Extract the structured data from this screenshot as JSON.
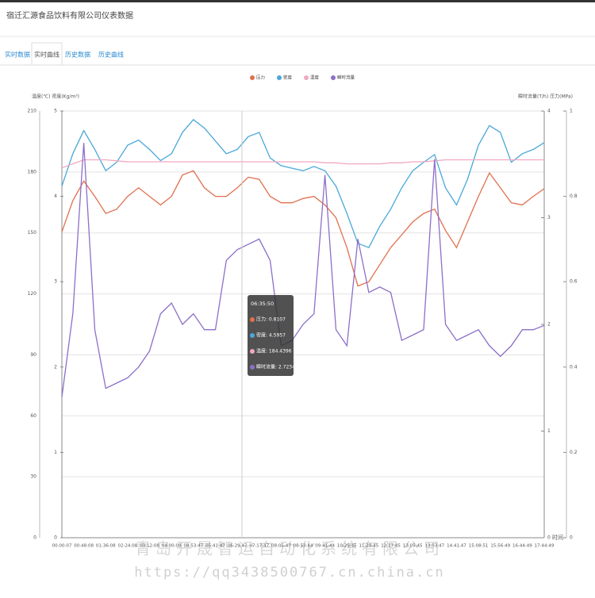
{
  "header": {
    "title": "宿迁汇源食品饮料有限公司仪表数据"
  },
  "tabs": [
    "实时数据",
    "实时曲线",
    "历史数据",
    "历史曲线"
  ],
  "chart_data": {
    "type": "line",
    "y_label": "温度(℃) 密度(Kg/m³)",
    "y2_label": "瞬时流量(T/h) 压力(MPa)",
    "x_label": "时间",
    "categories": [
      "00:00:07",
      null,
      "00:48:08",
      null,
      "01:36:08",
      null,
      "02:24:08",
      null,
      "03:12:08",
      null,
      "04:00:08",
      null,
      "04:53:47",
      null,
      "05:41:47",
      null,
      "06:29:47",
      null,
      "07:17:47",
      null,
      "08:05:47",
      null,
      "08:53:44",
      null,
      "09:41:44",
      null,
      "10:29:45",
      null,
      "11:29:45",
      null,
      "12:17:45",
      null,
      "13:05:45",
      null,
      "13:53:47",
      null,
      "14:41:47",
      null,
      "15:08:51",
      null,
      "15:56:49",
      null,
      "16:44:49",
      null,
      "17:44:49"
    ],
    "series": [
      {
        "name": "压力",
        "color": "#e0704f",
        "axis": "y2",
        "values": [
          0.717,
          0.79,
          0.836,
          0.8,
          0.76,
          0.77,
          0.8,
          0.82,
          0.8,
          0.78,
          0.8,
          0.85,
          0.86,
          0.82,
          0.8,
          0.8,
          0.82,
          0.845,
          0.84,
          0.8,
          0.785,
          0.785,
          0.795,
          0.8,
          0.78,
          0.75,
          0.68,
          0.59,
          0.6,
          0.64,
          0.68,
          0.71,
          0.74,
          0.76,
          0.77,
          0.72,
          0.68,
          0.74,
          0.8,
          0.855,
          0.82,
          0.785,
          0.78,
          0.8,
          0.818
        ]
      },
      {
        "name": "密度",
        "color": "#4aa8d8",
        "axis": "y3",
        "values": [
          4.12,
          4.5,
          4.77,
          4.55,
          4.3,
          4.4,
          4.6,
          4.66,
          4.55,
          4.42,
          4.5,
          4.75,
          4.9,
          4.8,
          4.65,
          4.5,
          4.55,
          4.7,
          4.75,
          4.45,
          4.36,
          4.33,
          4.3,
          4.35,
          4.3,
          4.12,
          3.8,
          3.45,
          3.4,
          3.65,
          3.85,
          4.1,
          4.3,
          4.4,
          4.49,
          4.1,
          3.9,
          4.2,
          4.6,
          4.83,
          4.75,
          4.4,
          4.5,
          4.55,
          4.63
        ]
      },
      {
        "name": "温度",
        "color": "#f0a8c0",
        "axis": "y",
        "values": [
          182,
          184,
          186,
          186,
          186,
          185.5,
          185,
          185,
          185,
          185,
          185,
          185,
          185,
          185,
          185,
          185,
          185,
          185,
          185,
          185,
          185,
          185,
          185,
          185,
          184.5,
          184.5,
          184,
          184,
          184,
          184,
          184.5,
          184.5,
          185,
          185,
          185.5,
          186,
          186,
          186,
          186,
          186,
          186,
          186,
          186,
          186,
          186
        ]
      },
      {
        "name": "瞬时流量",
        "color": "#8c6fc8",
        "axis": "y4",
        "values": [
          1.32,
          2.1,
          3.7,
          1.95,
          1.4,
          1.45,
          1.5,
          1.6,
          1.75,
          2.1,
          2.2,
          2.0,
          2.1,
          1.95,
          1.95,
          2.6,
          2.7,
          2.75,
          2.8,
          2.6,
          1.8,
          1.85,
          2.0,
          2.1,
          3.4,
          1.95,
          1.8,
          2.8,
          2.3,
          2.35,
          2.3,
          1.85,
          1.9,
          1.95,
          3.55,
          2.0,
          1.85,
          1.9,
          1.95,
          1.8,
          1.7,
          1.8,
          1.95,
          1.95,
          1.99
        ]
      }
    ],
    "ylim": [
      0,
      210
    ],
    "yticks": [
      0,
      30,
      60,
      90,
      120,
      150,
      180,
      210
    ],
    "y3lim": [
      0,
      5
    ],
    "y3ticks": [
      0,
      1,
      2,
      3,
      4,
      5
    ],
    "y2lim": [
      0,
      1
    ],
    "y2ticks": [
      0,
      0.2,
      0.4,
      0.6,
      0.8,
      1
    ],
    "y4lim": [
      0,
      4
    ],
    "y4ticks": [
      0,
      1,
      2,
      3,
      4
    ],
    "grid": true,
    "legend": "top",
    "tooltip": {
      "title": "06:35:50",
      "items": [
        "压力: 0.8107",
        "密度: 4.5957",
        "温度: 184.4396",
        "瞬时流量: 2.7234"
      ]
    }
  },
  "watermark": [
    "青岛开晟智运自动化系统有限公司",
    "https://qq3438500767.cn.china.cn"
  ]
}
